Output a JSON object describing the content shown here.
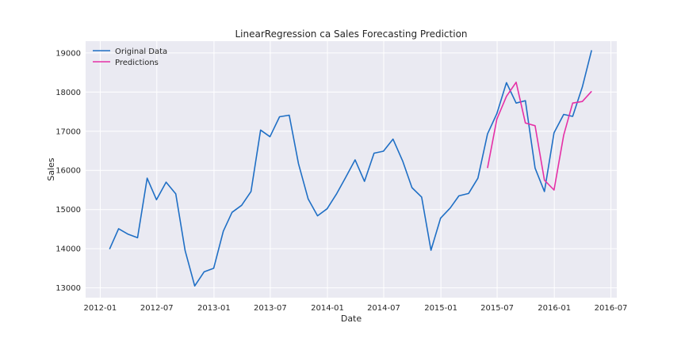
{
  "chart_data": {
    "type": "line",
    "title": "LinearRegression ca Sales Forecasting Prediction",
    "xlabel": "Date",
    "ylabel": "Sales",
    "x_range": [
      "2011-11-15",
      "2016-07-20"
    ],
    "ylim": [
      12750,
      19300
    ],
    "x_ticks": [
      "2012-01",
      "2012-07",
      "2013-01",
      "2013-07",
      "2014-01",
      "2014-07",
      "2015-01",
      "2015-07",
      "2016-01",
      "2016-07"
    ],
    "y_ticks": [
      13000,
      14000,
      15000,
      16000,
      17000,
      18000,
      19000
    ],
    "grid": true,
    "legend_position": "top-left",
    "colors": {
      "background": "#eaeaf2",
      "grid": "#ffffff"
    },
    "series": [
      {
        "name": "Original Data",
        "color": "#1f6fc5",
        "points": [
          [
            "2012-01-31",
            13990
          ],
          [
            "2012-02-29",
            14510
          ],
          [
            "2012-03-31",
            14370
          ],
          [
            "2012-04-30",
            14280
          ],
          [
            "2012-05-31",
            15800
          ],
          [
            "2012-06-30",
            15250
          ],
          [
            "2012-07-31",
            15700
          ],
          [
            "2012-08-31",
            15400
          ],
          [
            "2012-09-30",
            13950
          ],
          [
            "2012-10-31",
            13050
          ],
          [
            "2012-11-30",
            13410
          ],
          [
            "2012-12-31",
            13500
          ],
          [
            "2013-01-31",
            14450
          ],
          [
            "2013-02-28",
            14930
          ],
          [
            "2013-03-31",
            15110
          ],
          [
            "2013-04-30",
            15460
          ],
          [
            "2013-05-31",
            17030
          ],
          [
            "2013-06-30",
            16860
          ],
          [
            "2013-07-31",
            17370
          ],
          [
            "2013-08-31",
            17410
          ],
          [
            "2013-09-30",
            16170
          ],
          [
            "2013-10-31",
            15270
          ],
          [
            "2013-11-30",
            14840
          ],
          [
            "2013-12-31",
            15020
          ],
          [
            "2014-01-31",
            15410
          ],
          [
            "2014-02-28",
            15810
          ],
          [
            "2014-03-31",
            16270
          ],
          [
            "2014-04-30",
            15720
          ],
          [
            "2014-05-31",
            16440
          ],
          [
            "2014-06-30",
            16490
          ],
          [
            "2014-07-31",
            16800
          ],
          [
            "2014-08-31",
            16240
          ],
          [
            "2014-09-30",
            15560
          ],
          [
            "2014-10-31",
            15320
          ],
          [
            "2014-11-30",
            13960
          ],
          [
            "2014-12-31",
            14780
          ],
          [
            "2015-01-31",
            15040
          ],
          [
            "2015-02-28",
            15350
          ],
          [
            "2015-03-31",
            15410
          ],
          [
            "2015-04-30",
            15800
          ],
          [
            "2015-05-31",
            16930
          ],
          [
            "2015-06-30",
            17450
          ],
          [
            "2015-07-31",
            18240
          ],
          [
            "2015-08-31",
            17720
          ],
          [
            "2015-09-30",
            17780
          ],
          [
            "2015-10-31",
            16060
          ],
          [
            "2015-11-30",
            15460
          ],
          [
            "2015-12-31",
            16960
          ],
          [
            "2016-01-31",
            17430
          ],
          [
            "2016-02-29",
            17380
          ],
          [
            "2016-03-31",
            18130
          ],
          [
            "2016-04-30",
            19070
          ]
        ]
      },
      {
        "name": "Predictions",
        "color": "#e530a6",
        "points": [
          [
            "2015-05-31",
            16060
          ],
          [
            "2015-06-30",
            17310
          ],
          [
            "2015-07-31",
            17890
          ],
          [
            "2015-08-31",
            18250
          ],
          [
            "2015-09-30",
            17210
          ],
          [
            "2015-10-31",
            17140
          ],
          [
            "2015-11-30",
            15750
          ],
          [
            "2015-12-31",
            15500
          ],
          [
            "2016-01-31",
            16900
          ],
          [
            "2016-02-29",
            17720
          ],
          [
            "2016-03-31",
            17760
          ],
          [
            "2016-04-30",
            18020
          ]
        ]
      }
    ]
  }
}
